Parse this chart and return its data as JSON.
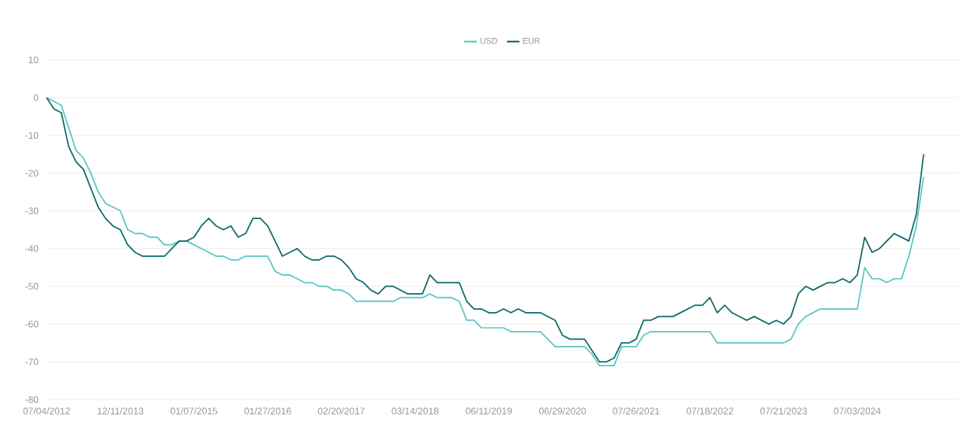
{
  "chart_data": {
    "type": "line",
    "categories": [
      "07/04/2012",
      null,
      null,
      null,
      null,
      null,
      null,
      null,
      null,
      null,
      "12/11/2013",
      null,
      null,
      null,
      null,
      null,
      null,
      null,
      null,
      null,
      "01/07/2015",
      null,
      null,
      null,
      null,
      null,
      null,
      null,
      null,
      null,
      "01/27/2016",
      null,
      null,
      null,
      null,
      null,
      null,
      null,
      null,
      null,
      "02/20/2017",
      null,
      null,
      null,
      null,
      null,
      null,
      null,
      null,
      null,
      "03/14/2018",
      null,
      null,
      null,
      null,
      null,
      null,
      null,
      null,
      null,
      "06/11/2019",
      null,
      null,
      null,
      null,
      null,
      null,
      null,
      null,
      null,
      "06/29/2020",
      null,
      null,
      null,
      null,
      null,
      null,
      null,
      null,
      null,
      "07/26/2021",
      null,
      null,
      null,
      null,
      null,
      null,
      null,
      null,
      null,
      "07/18/2022",
      null,
      null,
      null,
      null,
      null,
      null,
      null,
      null,
      null,
      "07/21/2023",
      null,
      null,
      null,
      null,
      null,
      null,
      null,
      null,
      null,
      "07/03/2024",
      null,
      null,
      null,
      null,
      null,
      null,
      null,
      null,
      null
    ],
    "series": [
      {
        "name": "USD",
        "color": "#5cc6c4",
        "values": [
          0,
          -1,
          -2,
          -8,
          -14,
          -16,
          -20,
          -25,
          -28,
          -29,
          -30,
          -35,
          -36,
          -36,
          -37,
          -37,
          -39,
          -39,
          -38,
          -38,
          -39,
          -40,
          -41,
          -42,
          -42,
          -43,
          -43,
          -42,
          -42,
          -42,
          -42,
          -46,
          -47,
          -47,
          -48,
          -49,
          -49,
          -50,
          -50,
          -51,
          -51,
          -52,
          -54,
          -54,
          -54,
          -54,
          -54,
          -54,
          -53,
          -53,
          -53,
          -53,
          -52,
          -53,
          -53,
          -53,
          -54,
          -59,
          -59,
          -61,
          -61,
          -61,
          -61,
          -62,
          -62,
          -62,
          -62,
          -62,
          -64,
          -66,
          -66,
          -66,
          -66,
          -66,
          -68,
          -71,
          -71,
          -71,
          -66,
          -66,
          -66,
          -63,
          -62,
          -62,
          -62,
          -62,
          -62,
          -62,
          -62,
          -62,
          -62,
          -65,
          -65,
          -65,
          -65,
          -65,
          -65,
          -65,
          -65,
          -65,
          -65,
          -64,
          -60,
          -58,
          -57,
          -56,
          -56,
          -56,
          -56,
          -56,
          -56,
          -45,
          -48,
          -48,
          -49,
          -48,
          -48,
          -42,
          -34,
          -21
        ]
      },
      {
        "name": "EUR",
        "color": "#0f6b68",
        "values": [
          0,
          -3,
          -4,
          -13,
          -17,
          -19,
          -24,
          -29,
          -32,
          -34,
          -35,
          -39,
          -41,
          -42,
          -42,
          -42,
          -42,
          -40,
          -38,
          -38,
          -37,
          -34,
          -32,
          -34,
          -35,
          -34,
          -37,
          -36,
          -32,
          -32,
          -34,
          -38,
          -42,
          -41,
          -40,
          -42,
          -43,
          -43,
          -42,
          -42,
          -43,
          -45,
          -48,
          -49,
          -51,
          -52,
          -50,
          -50,
          -51,
          -52,
          -52,
          -52,
          -47,
          -49,
          -49,
          -49,
          -49,
          -54,
          -56,
          -56,
          -57,
          -57,
          -56,
          -57,
          -56,
          -57,
          -57,
          -57,
          -58,
          -59,
          -63,
          -64,
          -64,
          -64,
          -67,
          -70,
          -70,
          -69,
          -65,
          -65,
          -64,
          -59,
          -59,
          -58,
          -58,
          -58,
          -57,
          -56,
          -55,
          -55,
          -53,
          -57,
          -55,
          -57,
          -58,
          -59,
          -58,
          -59,
          -60,
          -59,
          -60,
          -58,
          -52,
          -50,
          -51,
          -50,
          -49,
          -49,
          -48,
          -49,
          -47,
          -37,
          -41,
          -40,
          -38,
          -36,
          -37,
          -38,
          -31,
          -15
        ]
      }
    ],
    "ylim": [
      -80,
      10
    ],
    "yticks": [
      -80,
      -70,
      -60,
      -50,
      -40,
      -30,
      -20,
      -10,
      0,
      10
    ],
    "grid": "y",
    "legend": "top",
    "marker": "none",
    "line_style": "solid"
  }
}
